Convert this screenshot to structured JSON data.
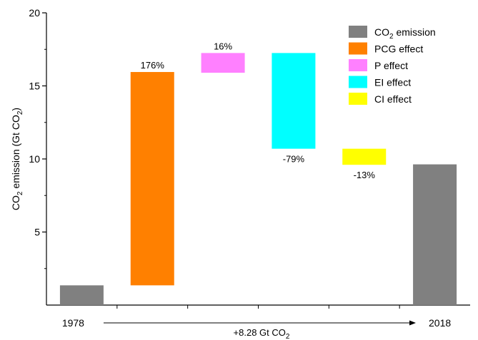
{
  "chart_data": {
    "type": "bar",
    "subtype": "waterfall",
    "ylabel_parts": {
      "pre": "CO",
      "sub": "2",
      "post": " emission (Gt CO",
      "sub2": "2",
      "end": ")"
    },
    "ylim": [
      0,
      20
    ],
    "yticks": [
      "5",
      "10",
      "15",
      "20"
    ],
    "ytick_values": [
      5,
      10,
      15,
      20
    ],
    "grid": false,
    "legend_position": "top-right",
    "bars": [
      {
        "key": "co2_1978",
        "series": "CO2 emission",
        "start": 0,
        "end": 1.35,
        "label": ""
      },
      {
        "key": "pcg",
        "series": "PCG effect",
        "start": 1.35,
        "end": 15.95,
        "label": "176%"
      },
      {
        "key": "p",
        "series": "P effect",
        "start": 15.9,
        "end": 17.25,
        "label": "16%"
      },
      {
        "key": "ei",
        "series": "EI effect",
        "start": 10.7,
        "end": 17.25,
        "label": "-79%"
      },
      {
        "key": "ci",
        "series": "CI effect",
        "start": 9.6,
        "end": 10.7,
        "label": "-13%"
      },
      {
        "key": "co2_2018",
        "series": "CO2 emission",
        "start": 0,
        "end": 9.63,
        "label": ""
      }
    ],
    "legend": [
      {
        "key": "co2",
        "pre": "CO",
        "sub": "2",
        "post": " emission",
        "color": "#808080"
      },
      {
        "key": "pcg",
        "pre": "PCG effect",
        "sub": "",
        "post": "",
        "color": "#ff8000"
      },
      {
        "key": "p",
        "pre": "P effect",
        "sub": "",
        "post": "",
        "color": "#ff80ff"
      },
      {
        "key": "ei",
        "pre": "EI effect",
        "sub": "",
        "post": "",
        "color": "#00ffff"
      },
      {
        "key": "ci",
        "pre": "CI effect",
        "sub": "",
        "post": "",
        "color": "#ffff00"
      }
    ],
    "colors": {
      "CO2 emission": "#808080",
      "PCG effect": "#ff8000",
      "P effect": "#ff80ff",
      "EI effect": "#00ffff",
      "CI effect": "#ffff00"
    },
    "x_start_label": "1978",
    "x_end_label": "2018",
    "change_note": {
      "pre": "+8.28 Gt CO",
      "sub": "2"
    }
  }
}
